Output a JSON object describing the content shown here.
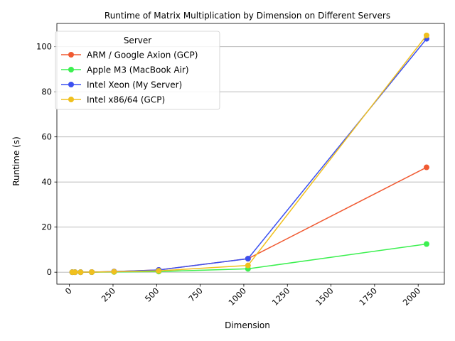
{
  "chart_data": {
    "type": "line",
    "title": "Runtime of Matrix Multiplication by Dimension on Different Servers",
    "xlabel": "Dimension",
    "ylabel": "Runtime (s)",
    "xlim": [
      -72,
      2150
    ],
    "ylim": [
      -5.3,
      110.3
    ],
    "x_ticks": [
      0,
      250,
      500,
      750,
      1000,
      1250,
      1500,
      1750,
      2000
    ],
    "y_ticks": [
      0,
      20,
      40,
      60,
      80,
      100
    ],
    "grid": "horizontal",
    "legend_title": "Server",
    "legend_position": "top-left",
    "x": [
      16,
      32,
      64,
      128,
      256,
      512,
      1024,
      2048
    ],
    "series": [
      {
        "name": "ARM / Google Axion (GCP)",
        "color": "#f05a32",
        "values": [
          0.0,
          0.0,
          0.01,
          0.05,
          0.3,
          1.0,
          6.0,
          46.5
        ]
      },
      {
        "name": "Apple M3 (MacBook Air)",
        "color": "#3cf050",
        "values": [
          0.0,
          0.0,
          0.0,
          0.02,
          0.1,
          0.3,
          1.5,
          12.5
        ]
      },
      {
        "name": "Intel Xeon (My Server)",
        "color": "#3c50f0",
        "values": [
          0.0,
          0.0,
          0.01,
          0.05,
          0.3,
          1.0,
          6.0,
          103.5
        ]
      },
      {
        "name": "Intel x86/64 (GCP)",
        "color": "#f0c01e",
        "values": [
          0.0,
          0.0,
          0.01,
          0.05,
          0.2,
          0.6,
          3.0,
          105.0
        ]
      }
    ]
  }
}
